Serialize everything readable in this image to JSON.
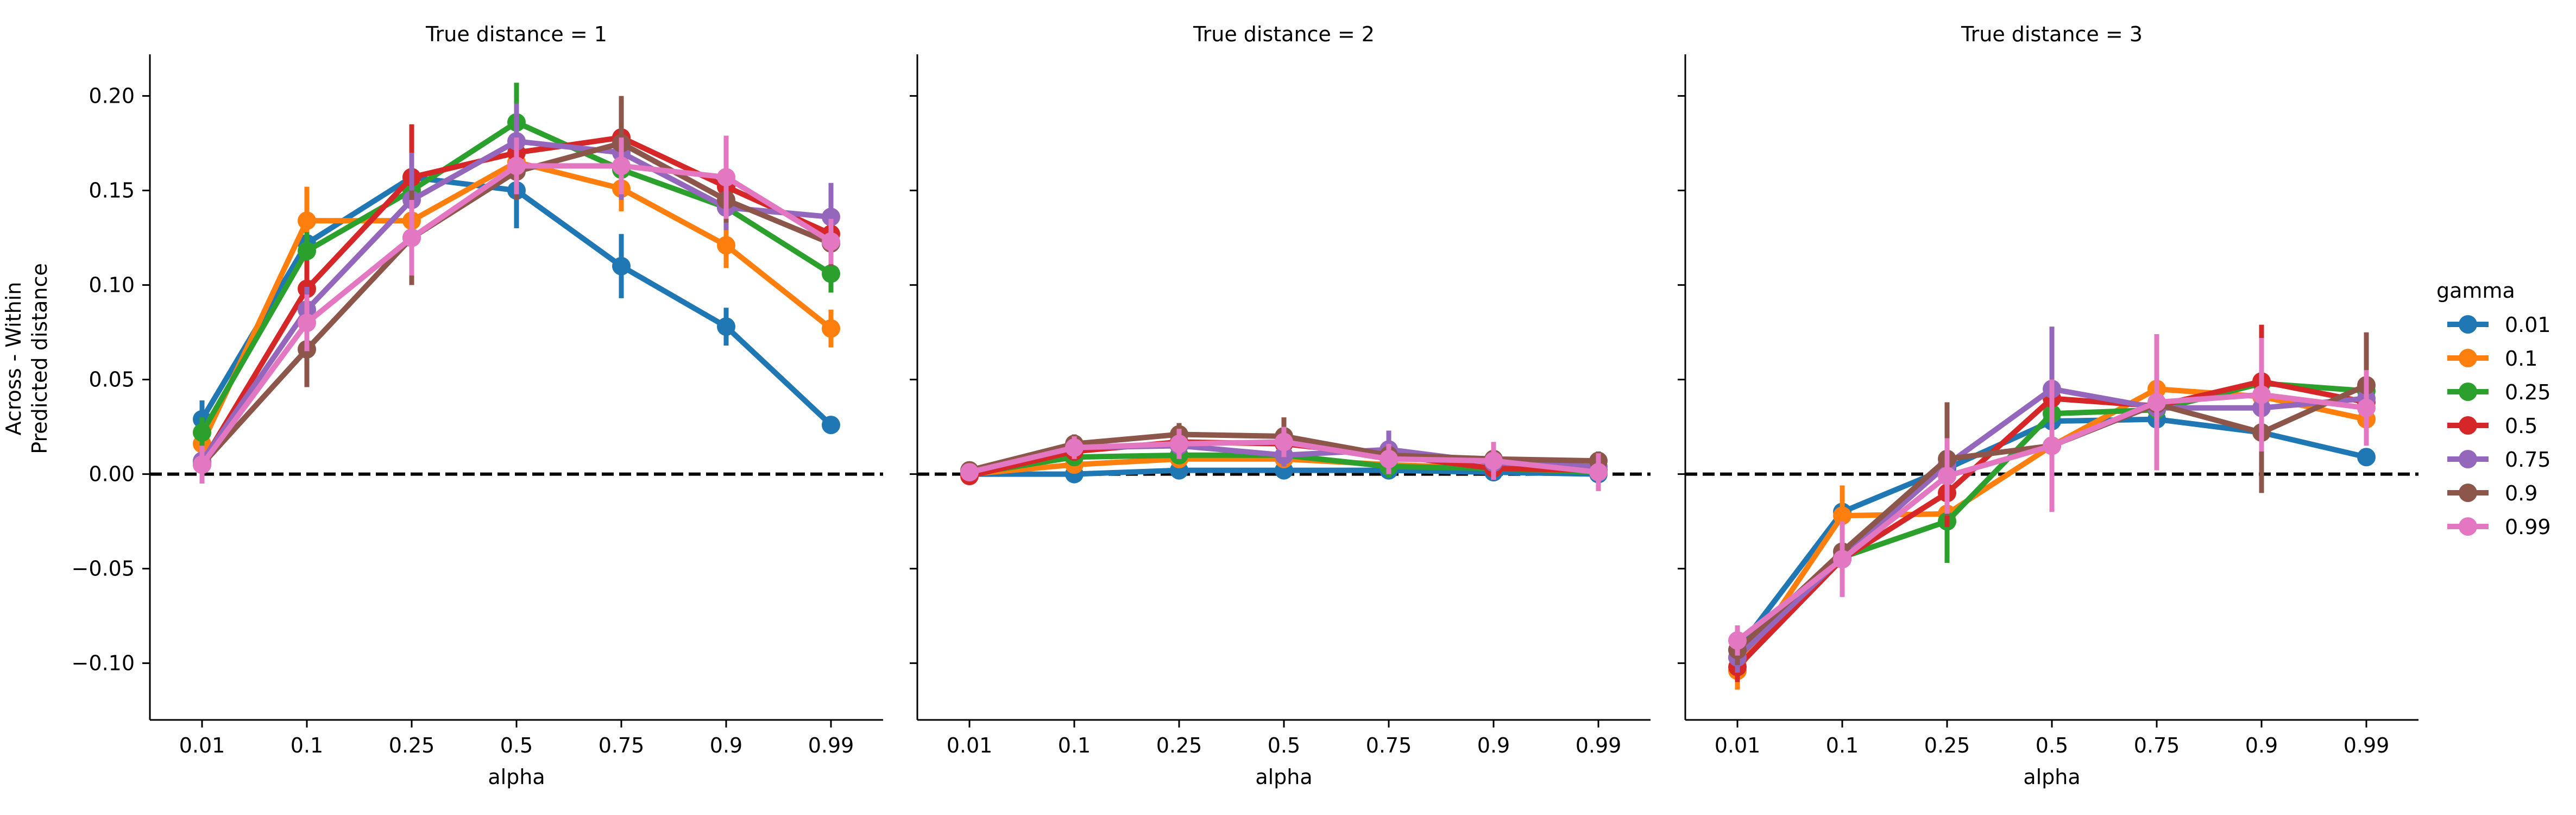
{
  "chart_data": {
    "type": "line",
    "ylabel_lines": [
      "Across - Within",
      "Predicted distance"
    ],
    "xlabel": "alpha",
    "categories": [
      "0.01",
      "0.1",
      "0.25",
      "0.5",
      "0.75",
      "0.9",
      "0.99"
    ],
    "ylim": [
      -0.13,
      0.222
    ],
    "yticks": [
      -0.1,
      -0.05,
      0.0,
      0.05,
      0.1,
      0.15,
      0.2
    ],
    "ytick_labels": [
      "−0.10",
      "−0.05",
      "0.00",
      "0.05",
      "0.10",
      "0.15",
      "0.20"
    ],
    "reference_line": 0.0,
    "legend": {
      "title": "gamma",
      "placement": "right",
      "entries": [
        "0.01",
        "0.1",
        "0.25",
        "0.5",
        "0.75",
        "0.9",
        "0.99"
      ],
      "colors": [
        "#1f77b4",
        "#ff7f0e",
        "#2ca02c",
        "#d62728",
        "#9467bd",
        "#8c564b",
        "#e377c2"
      ]
    },
    "panels": [
      {
        "title": "True distance = 1",
        "series": [
          {
            "name": "0.01",
            "values": [
              0.029,
              0.122,
              0.157,
              0.15,
              0.11,
              0.078,
              0.026
            ],
            "err": [
              0.01,
              0.01,
              0.01,
              0.02,
              0.017,
              0.01,
              0.0
            ]
          },
          {
            "name": "0.1",
            "values": [
              0.016,
              0.134,
              0.134,
              0.165,
              0.151,
              0.121,
              0.077
            ],
            "err": [
              0.008,
              0.018,
              0.012,
              0.01,
              0.012,
              0.012,
              0.01
            ]
          },
          {
            "name": "0.25",
            "values": [
              0.022,
              0.118,
              0.15,
              0.186,
              0.161,
              0.141,
              0.106
            ],
            "err": [
              0.008,
              0.01,
              0.01,
              0.021,
              0.012,
              0.01,
              0.01
            ]
          },
          {
            "name": "0.5",
            "values": [
              0.006,
              0.098,
              0.157,
              0.17,
              0.178,
              0.152,
              0.127
            ],
            "err": [
              0.008,
              0.015,
              0.028,
              0.012,
              0.02,
              0.012,
              0.012
            ]
          },
          {
            "name": "0.75",
            "values": [
              0.007,
              0.087,
              0.145,
              0.176,
              0.17,
              0.141,
              0.136
            ],
            "err": [
              0.006,
              0.012,
              0.025,
              0.02,
              0.025,
              0.012,
              0.018
            ]
          },
          {
            "name": "0.9",
            "values": [
              0.005,
              0.066,
              0.125,
              0.16,
              0.175,
              0.145,
              0.122
            ],
            "err": [
              0.006,
              0.02,
              0.025,
              0.015,
              0.025,
              0.012,
              0.012
            ]
          },
          {
            "name": "0.99",
            "values": [
              0.005,
              0.08,
              0.125,
              0.163,
              0.163,
              0.157,
              0.123
            ],
            "err": [
              0.01,
              0.015,
              0.02,
              0.015,
              0.015,
              0.022,
              0.012
            ]
          }
        ]
      },
      {
        "title": "True distance = 2",
        "series": [
          {
            "name": "0.01",
            "values": [
              0.0,
              0.0,
              0.002,
              0.002,
              0.002,
              0.001,
              0.0
            ],
            "err": [
              0.002,
              0.002,
              0.002,
              0.003,
              0.002,
              0.002,
              0.002
            ]
          },
          {
            "name": "0.1",
            "values": [
              0.0,
              0.005,
              0.008,
              0.008,
              0.005,
              0.003,
              0.002
            ],
            "err": [
              0.002,
              0.003,
              0.003,
              0.003,
              0.003,
              0.003,
              0.003
            ]
          },
          {
            "name": "0.25",
            "values": [
              0.0,
              0.009,
              0.01,
              0.01,
              0.004,
              0.003,
              0.001
            ],
            "err": [
              0.002,
              0.004,
              0.004,
              0.004,
              0.006,
              0.004,
              0.003
            ]
          },
          {
            "name": "0.5",
            "values": [
              -0.001,
              0.012,
              0.017,
              0.016,
              0.01,
              0.003,
              0.002
            ],
            "err": [
              0.002,
              0.005,
              0.006,
              0.006,
              0.005,
              0.006,
              0.004
            ]
          },
          {
            "name": "0.75",
            "values": [
              0.001,
              0.014,
              0.015,
              0.01,
              0.013,
              0.006,
              0.004
            ],
            "err": [
              0.002,
              0.005,
              0.006,
              0.006,
              0.01,
              0.006,
              0.005
            ]
          },
          {
            "name": "0.9",
            "values": [
              0.002,
              0.016,
              0.021,
              0.02,
              0.01,
              0.008,
              0.007
            ],
            "err": [
              0.002,
              0.005,
              0.006,
              0.01,
              0.006,
              0.006,
              0.005
            ]
          },
          {
            "name": "0.99",
            "values": [
              0.001,
              0.014,
              0.016,
              0.017,
              0.008,
              0.007,
              0.001
            ],
            "err": [
              0.002,
              0.006,
              0.008,
              0.008,
              0.008,
              0.01,
              0.01
            ]
          }
        ]
      },
      {
        "title": "True distance = 3",
        "series": [
          {
            "name": "0.01",
            "values": [
              -0.093,
              -0.02,
              0.003,
              0.028,
              0.029,
              0.022,
              0.009
            ],
            "err": [
              0.006,
              0.006,
              0.006,
              0.008,
              0.008,
              0.006,
              0.004
            ]
          },
          {
            "name": "0.1",
            "values": [
              -0.104,
              -0.022,
              -0.021,
              0.015,
              0.045,
              0.041,
              0.029
            ],
            "err": [
              0.01,
              0.016,
              0.015,
              0.018,
              0.015,
              0.015,
              0.012
            ]
          },
          {
            "name": "0.25",
            "values": [
              -0.097,
              -0.044,
              -0.025,
              0.032,
              0.034,
              0.048,
              0.044
            ],
            "err": [
              0.008,
              0.012,
              0.022,
              0.018,
              0.015,
              0.015,
              0.012
            ]
          },
          {
            "name": "0.5",
            "values": [
              -0.102,
              -0.045,
              -0.01,
              0.04,
              0.036,
              0.049,
              0.038
            ],
            "err": [
              0.008,
              0.012,
              0.018,
              0.018,
              0.018,
              0.03,
              0.012
            ]
          },
          {
            "name": "0.75",
            "values": [
              -0.097,
              -0.044,
              0.005,
              0.045,
              0.035,
              0.035,
              0.04
            ],
            "err": [
              0.008,
              0.012,
              0.018,
              0.033,
              0.025,
              0.02,
              0.015
            ]
          },
          {
            "name": "0.9",
            "values": [
              -0.093,
              -0.041,
              0.008,
              0.015,
              0.037,
              0.022,
              0.047
            ],
            "err": [
              0.008,
              0.012,
              0.03,
              0.02,
              0.025,
              0.032,
              0.028
            ]
          },
          {
            "name": "0.99",
            "values": [
              -0.088,
              -0.045,
              -0.001,
              0.015,
              0.038,
              0.042,
              0.035
            ],
            "err": [
              0.008,
              0.02,
              0.02,
              0.035,
              0.036,
              0.03,
              0.02
            ]
          }
        ]
      }
    ]
  }
}
